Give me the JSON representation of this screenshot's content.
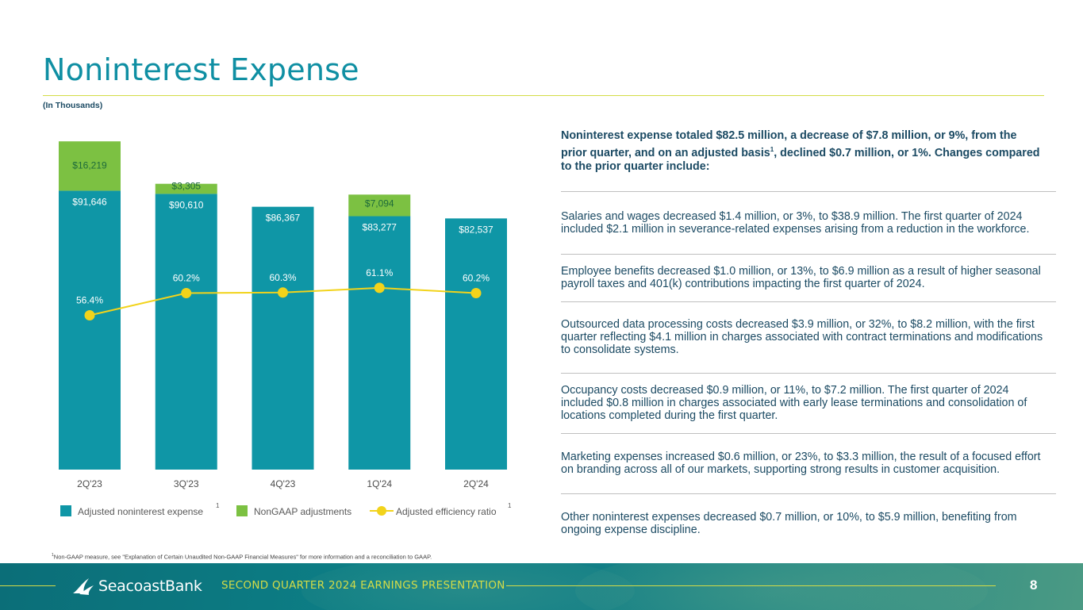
{
  "page": {
    "title": "Noninterest Expense",
    "units": "(In Thousands)"
  },
  "chart_data": {
    "type": "bar",
    "stacked": true,
    "categories": [
      "2Q'23",
      "3Q'23",
      "4Q'23",
      "1Q'24",
      "2Q'24"
    ],
    "series": [
      {
        "name": "Adjusted noninterest expense",
        "superscript": "1",
        "color": "#0f96a6",
        "values": [
          91646,
          90610,
          86367,
          83277,
          82537
        ],
        "labels": [
          "$91,646",
          "$90,610",
          "$86,367",
          "$83,277",
          "$82,537"
        ]
      },
      {
        "name": "NonGAAP adjustments",
        "superscript": "",
        "color": "#7cc142",
        "values": [
          16219,
          3305,
          0,
          7094,
          0
        ],
        "labels": [
          "$16,219",
          "$3,305",
          "",
          "$7,094",
          ""
        ]
      }
    ],
    "line_series": {
      "name": "Adjusted efficiency ratio",
      "superscript": "1",
      "color": "#f2d31b",
      "values": [
        56.4,
        60.2,
        60.3,
        61.1,
        60.2
      ],
      "labels": [
        "56.4%",
        "60.2%",
        "60.3%",
        "61.1%",
        "60.2%"
      ],
      "ylim": [
        30,
        90
      ]
    },
    "ylim": [
      0,
      110000
    ],
    "title": "",
    "xlabel": "",
    "ylabel": "",
    "legend_position": "bottom"
  },
  "commentary": {
    "intro_before": "Noninterest expense totaled $82.5 million, a decrease of $7.8 million, or 9%, from the prior quarter, and on an adjusted basis",
    "intro_sup": "1",
    "intro_after": ", declined $0.7 million, or 1%. Changes compared to the prior quarter include:",
    "bullets": [
      "Salaries and wages decreased $1.4 million, or 3%, to $38.9 million. The first quarter of 2024 included $2.1 million in severance-related expenses arising from a reduction in the workforce.",
      "Employee benefits decreased $1.0 million, or 13%, to $6.9 million as a result of higher seasonal payroll taxes and 401(k) contributions impacting the first quarter of 2024.",
      "Outsourced data processing costs decreased $3.9 million, or 32%, to $8.2 million, with the first quarter reflecting $4.1 million in charges associated with contract terminations and modifications to consolidate systems.",
      "Occupancy costs decreased $0.9 million, or 11%, to $7.2 million. The first quarter of 2024 included $0.8 million in charges associated with early lease terminations and consolidation of locations completed during the first quarter.",
      "Marketing expenses increased $0.6 million, or 23%, to $3.3 million, the result of a focused effort on branding across all of our markets, supporting strong results in customer acquisition.",
      "Other noninterest expenses decreased $0.7 million, or 10%, to $5.9 million, benefiting from ongoing expense discipline."
    ]
  },
  "footnote": {
    "sup": "1",
    "text": "Non-GAAP measure, see \"Explanation of Certain Unaudited Non-GAAP Financial Measures\" for more information and a reconciliation to GAAP."
  },
  "footer": {
    "logo_text": "SeacoastBank",
    "presentation_title": "SECOND QUARTER 2024 EARNINGS PRESENTATION",
    "page_number": "8"
  },
  "colors": {
    "teal": "#0f96a6",
    "green": "#7cc142",
    "yellow": "#f2d31b",
    "accent_line": "#d4dc47",
    "title": "#0f8fa3"
  }
}
